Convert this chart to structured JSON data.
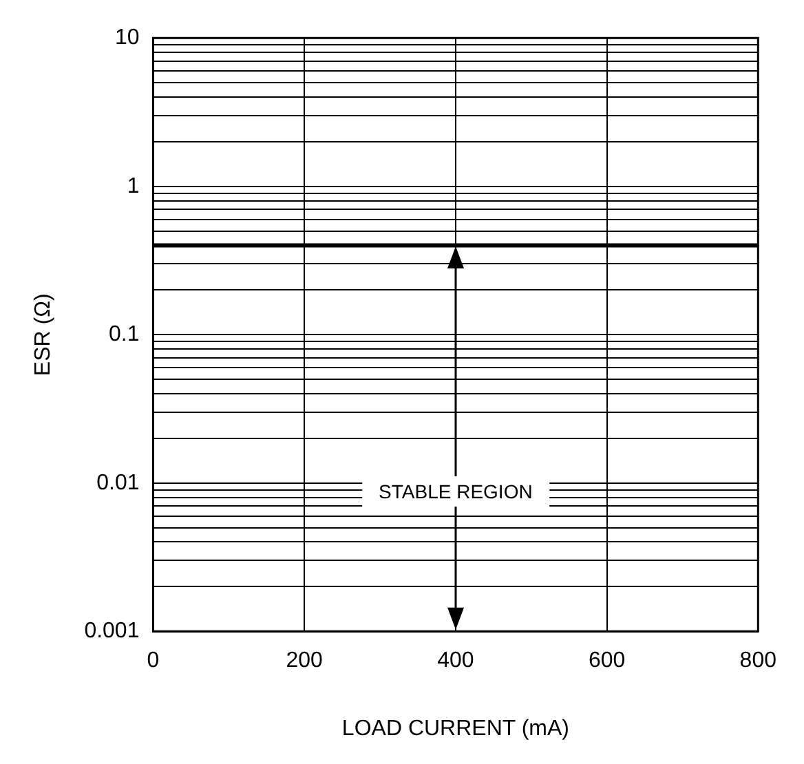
{
  "chart_data": {
    "type": "line",
    "xlabel": "LOAD CURRENT (mA)",
    "ylabel": "ESR (Ω)",
    "x": [
      0,
      800
    ],
    "series": [
      {
        "color": "#000000",
        "values": [
          0.4,
          0.4
        ]
      }
    ],
    "xlim": [
      0,
      800
    ],
    "xticks": [
      0,
      200,
      400,
      600,
      800
    ],
    "ylim": [
      0.001,
      10
    ],
    "yticks": [
      0.001,
      {
        "value": 0.002,
        "label": null
      },
      {
        "value": 0.003,
        "label": null
      },
      {
        "value": 0.004,
        "label": null
      },
      {
        "value": 0.005,
        "label": null
      },
      {
        "value": 0.006,
        "label": null
      },
      {
        "value": 0.007,
        "label": null
      },
      {
        "value": 0.008,
        "label": null
      },
      {
        "value": 0.009,
        "label": null
      },
      0.01,
      {
        "value": 0.02,
        "label": null
      },
      {
        "value": 0.03,
        "label": null
      },
      {
        "value": 0.04,
        "label": null
      },
      {
        "value": 0.05,
        "label": null
      },
      {
        "value": 0.06,
        "label": null
      },
      {
        "value": 0.07,
        "label": null
      },
      {
        "value": 0.08,
        "label": null
      },
      {
        "value": 0.09,
        "label": null
      },
      0.1,
      {
        "value": 0.2,
        "label": null
      },
      {
        "value": 0.3,
        "label": null
      },
      {
        "value": 0.5,
        "label": null
      },
      {
        "value": 0.6,
        "label": null
      },
      {
        "value": 0.7,
        "label": null
      },
      {
        "value": 0.8,
        "label": null
      },
      {
        "value": 0.9,
        "label": null
      },
      1,
      {
        "value": 2,
        "label": null
      },
      {
        "value": 3,
        "label": null
      },
      {
        "value": 4,
        "label": null
      },
      {
        "value": 5,
        "label": null
      },
      {
        "value": 6,
        "label": null
      },
      {
        "value": 7,
        "label": null
      },
      {
        "value": 8,
        "label": null
      },
      {
        "value": 9,
        "label": null
      },
      10
    ],
    "log": "y",
    "grid": true,
    "legend": false,
    "marker": "none",
    "line_style": "solid",
    "annotations": [
      "STABLE REGION"
    ]
  }
}
